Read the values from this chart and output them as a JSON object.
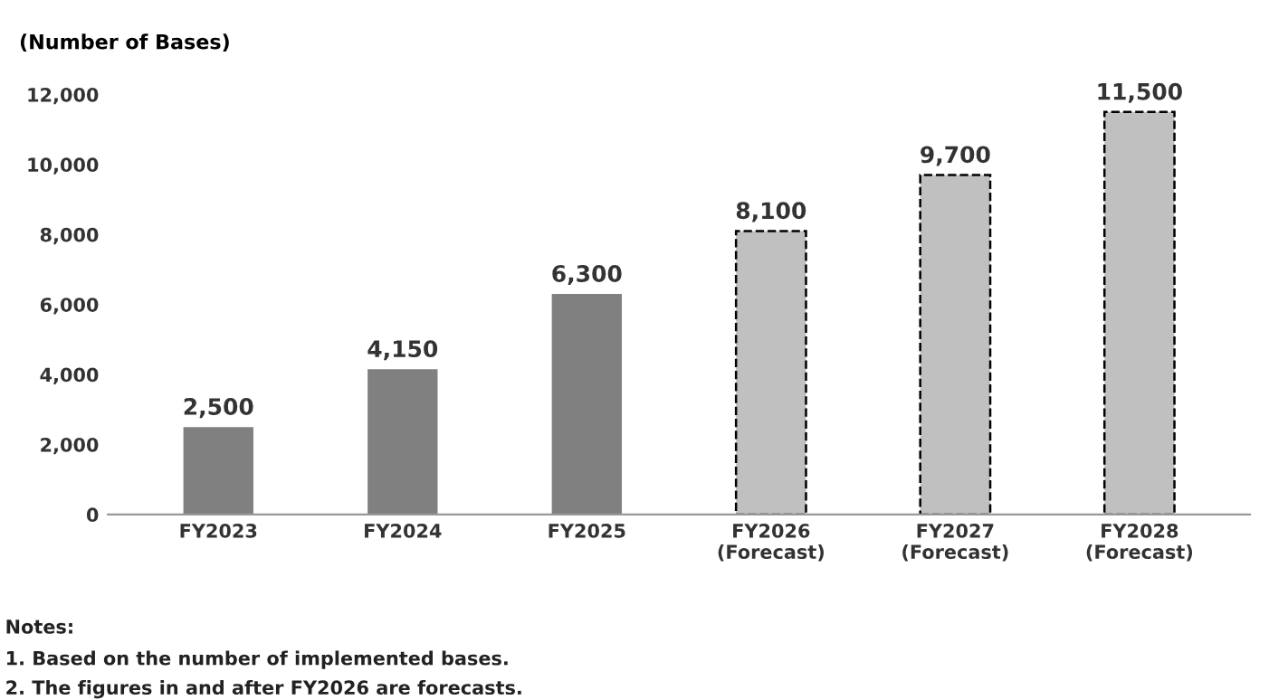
{
  "chart_data": {
    "type": "bar",
    "ylabel": "(Number of Bases)",
    "categories": [
      "FY2023",
      "FY2024",
      "FY2025",
      "FY2026\n(Forecast)",
      "FY2027\n(Forecast)",
      "FY2028\n(Forecast)"
    ],
    "series": [
      {
        "color": "#808080",
        "values": [
          2500,
          4150,
          6300,
          null,
          null,
          null
        ],
        "value_labels": [
          "2,500",
          "4,150",
          "6,300",
          null,
          null,
          null
        ]
      },
      {
        "color": "#c0c0c0",
        "line_style": "dashed",
        "values": [
          null,
          null,
          null,
          8100,
          9700,
          11500
        ],
        "value_labels": [
          null,
          null,
          null,
          "8,100",
          "9,700",
          "11,500"
        ]
      }
    ],
    "ylim": [
      0,
      12000
    ],
    "yticks": [
      {
        "value": 0,
        "label": "0"
      },
      {
        "value": 2000,
        "label": "2,000"
      },
      {
        "value": 4000,
        "label": "4,000"
      },
      {
        "value": 6000,
        "label": "6,000"
      },
      {
        "value": 8000,
        "label": "8,000"
      },
      {
        "value": 10000,
        "label": "10,000"
      },
      {
        "value": 12000,
        "label": "12,000"
      }
    ],
    "grid": false,
    "annotations": [
      "Notes:",
      "1. Based on the number of implemented bases.",
      "2. The figures in and after FY2026 are forecasts."
    ]
  }
}
